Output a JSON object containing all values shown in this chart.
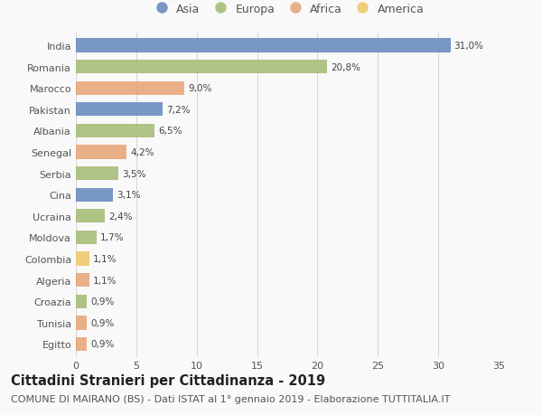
{
  "categories": [
    "India",
    "Romania",
    "Marocco",
    "Pakistan",
    "Albania",
    "Senegal",
    "Serbia",
    "Cina",
    "Ucraina",
    "Moldova",
    "Colombia",
    "Algeria",
    "Croazia",
    "Tunisia",
    "Egitto"
  ],
  "values": [
    31.0,
    20.8,
    9.0,
    7.2,
    6.5,
    4.2,
    3.5,
    3.1,
    2.4,
    1.7,
    1.1,
    1.1,
    0.9,
    0.9,
    0.9
  ],
  "labels": [
    "31,0%",
    "20,8%",
    "9,0%",
    "7,2%",
    "6,5%",
    "4,2%",
    "3,5%",
    "3,1%",
    "2,4%",
    "1,7%",
    "1,1%",
    "1,1%",
    "0,9%",
    "0,9%",
    "0,9%"
  ],
  "continents": [
    "Asia",
    "Europa",
    "Africa",
    "Asia",
    "Europa",
    "Africa",
    "Europa",
    "Asia",
    "Europa",
    "Europa",
    "America",
    "Africa",
    "Europa",
    "Africa",
    "Africa"
  ],
  "continent_colors": {
    "Asia": "#6b8cbf",
    "Europa": "#a8be7b",
    "Africa": "#e8a87c",
    "America": "#f0c96e"
  },
  "legend_order": [
    "Asia",
    "Europa",
    "Africa",
    "America"
  ],
  "title": "Cittadini Stranieri per Cittadinanza - 2019",
  "subtitle": "COMUNE DI MAIRANO (BS) - Dati ISTAT al 1° gennaio 2019 - Elaborazione TUTTITALIA.IT",
  "xlim": [
    0,
    35
  ],
  "xticks": [
    0,
    5,
    10,
    15,
    20,
    25,
    30,
    35
  ],
  "background_color": "#f9f9f9",
  "grid_color": "#d8d8d8",
  "bar_height": 0.65,
  "title_fontsize": 10.5,
  "subtitle_fontsize": 8,
  "label_fontsize": 7.5,
  "tick_fontsize": 8,
  "legend_fontsize": 9
}
